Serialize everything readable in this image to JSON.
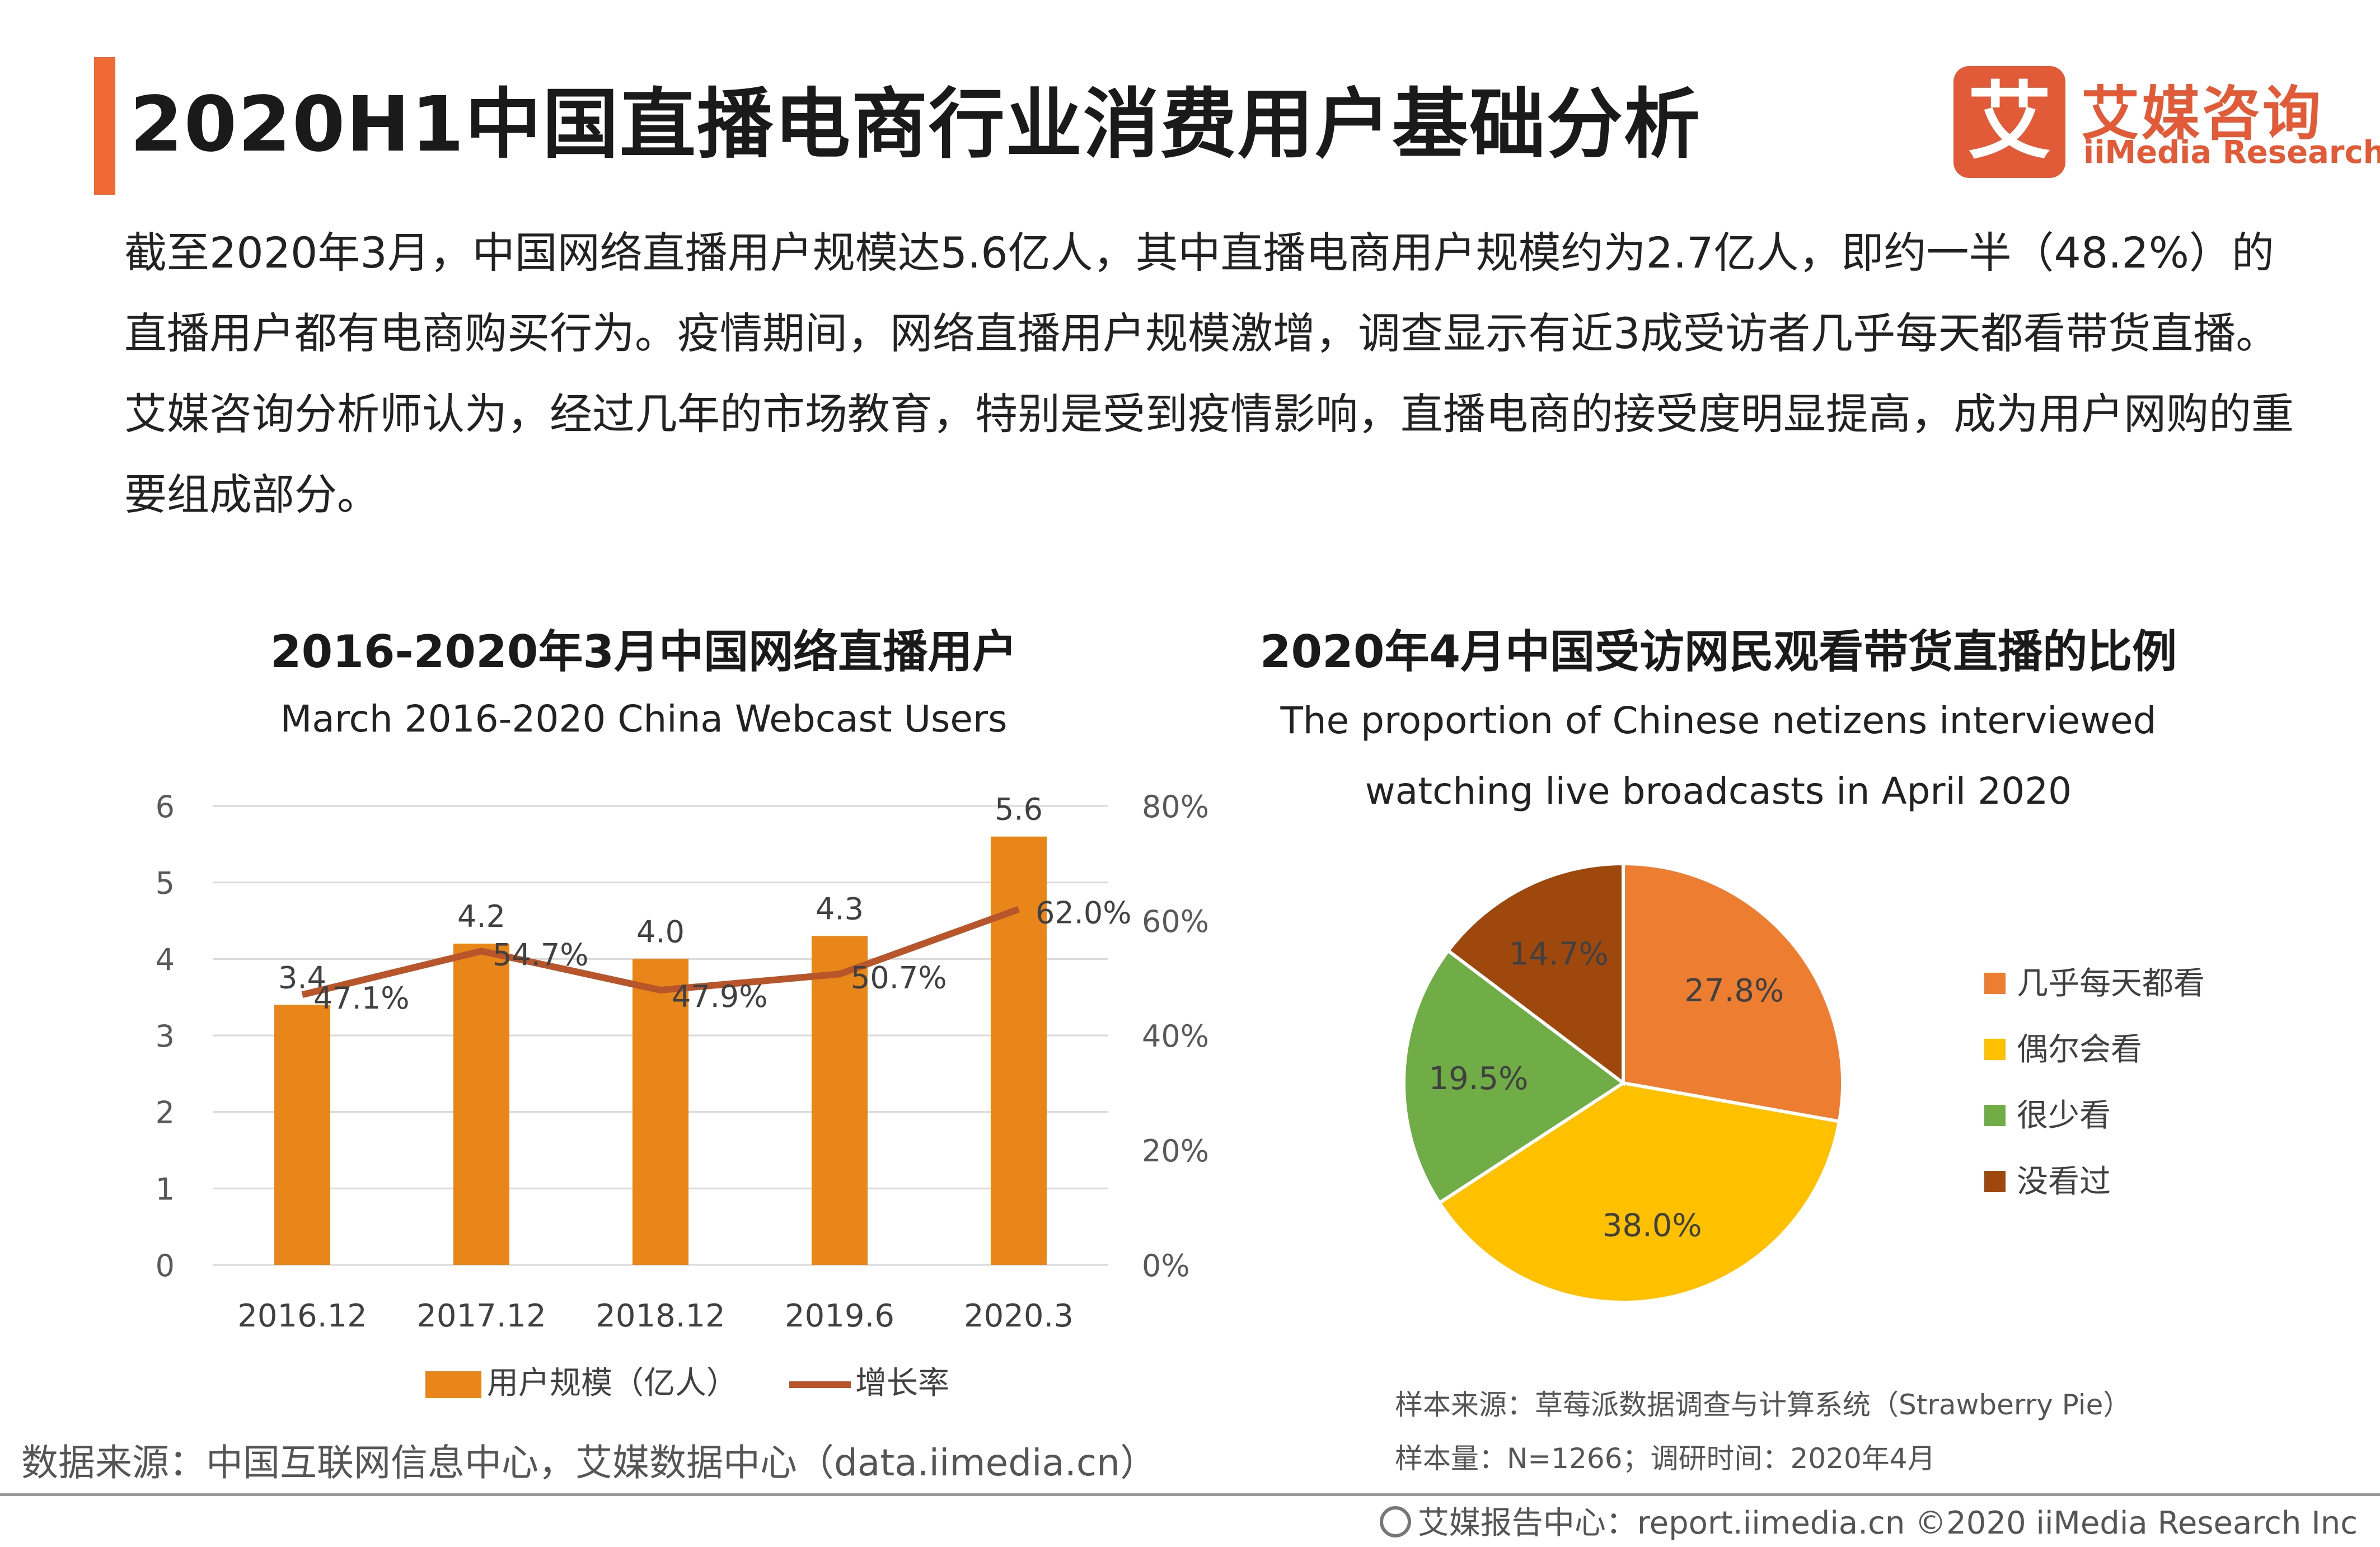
{
  "header": {
    "title": "2020H1中国直播电商行业消费用户基础分析",
    "logo_mark": "艾",
    "logo_cn": "艾媒咨询",
    "logo_en": "iiMedia Research",
    "accent_color": "#f06a35",
    "brand_color": "#e25b39"
  },
  "intro": {
    "text": "截至2020年3月，中国网络直播用户规模达5.6亿人，其中直播电商用户规模约为2.7亿人，即约一半（48.2%）的直播用户都有电商购买行为。疫情期间，网络直播用户规模激增，调查显示有近3成受访者几乎每天都看带货直播。艾媒咨询分析师认为，经过几年的市场教育，特别是受到疫情影响，直播电商的接受度明显提高，成为用户网购的重要组成部分。"
  },
  "chart_data": [
    {
      "type": "bar",
      "title": "2016-2020年3月中国网络直播用户",
      "subtitle": "March 2016-2020 China Webcast Users",
      "categories": [
        "2016.12",
        "2017.12",
        "2018.12",
        "2019.6",
        "2020.3"
      ],
      "series": [
        {
          "name": "用户规模（亿人）",
          "type": "bar",
          "axis": "left",
          "color": "#e8861a",
          "values": [
            3.4,
            4.2,
            4.0,
            4.3,
            5.6
          ],
          "labels": [
            "3.4",
            "4.2",
            "4.0",
            "4.3",
            "5.6"
          ]
        },
        {
          "name": "增长率",
          "type": "line",
          "axis": "right",
          "color": "#b9552a",
          "values": [
            47.1,
            54.7,
            47.9,
            50.7,
            62.0
          ],
          "labels": [
            "47.1%",
            "54.7%",
            "47.9%",
            "50.7%",
            "62.0%"
          ]
        }
      ],
      "y_left": {
        "ticks": [
          "0",
          "1",
          "2",
          "3",
          "4",
          "5",
          "6"
        ],
        "ylim": [
          0,
          6
        ]
      },
      "y_right": {
        "ticks": [
          "0%",
          "20%",
          "40%",
          "60%",
          "80%"
        ],
        "ylim": [
          0,
          80
        ]
      },
      "grid": true,
      "legend": "bottom"
    },
    {
      "type": "pie",
      "title": "2020年4月中国受访网民观看带货直播的比例",
      "subtitle_lines": [
        "The proportion of Chinese netizens interviewed",
        "watching live broadcasts in April 2020"
      ],
      "slices": [
        {
          "label": "几乎每天都看",
          "value": 27.8,
          "text": "27.8%",
          "color": "#ed7d31"
        },
        {
          "label": "偶尔会看",
          "value": 38.0,
          "text": "38.0%",
          "color": "#ffc000"
        },
        {
          "label": "很少看",
          "value": 19.5,
          "text": "19.5%",
          "color": "#70ad47"
        },
        {
          "label": "没看过",
          "value": 14.7,
          "text": "14.7%",
          "color": "#9e480e"
        }
      ],
      "legend": "right"
    }
  ],
  "sources": {
    "left": "数据来源：中国互联网信息中心，艾媒数据中心（data.iimedia.cn）",
    "sample_source": "样本来源：草莓派数据调查与计算系统（Strawberry Pie）",
    "sample_size": "样本量：N=1266；调研时间：2020年4月"
  },
  "footer": {
    "text": "艾媒报告中心：report.iimedia.cn   ©2020  iiMedia Research  Inc"
  }
}
